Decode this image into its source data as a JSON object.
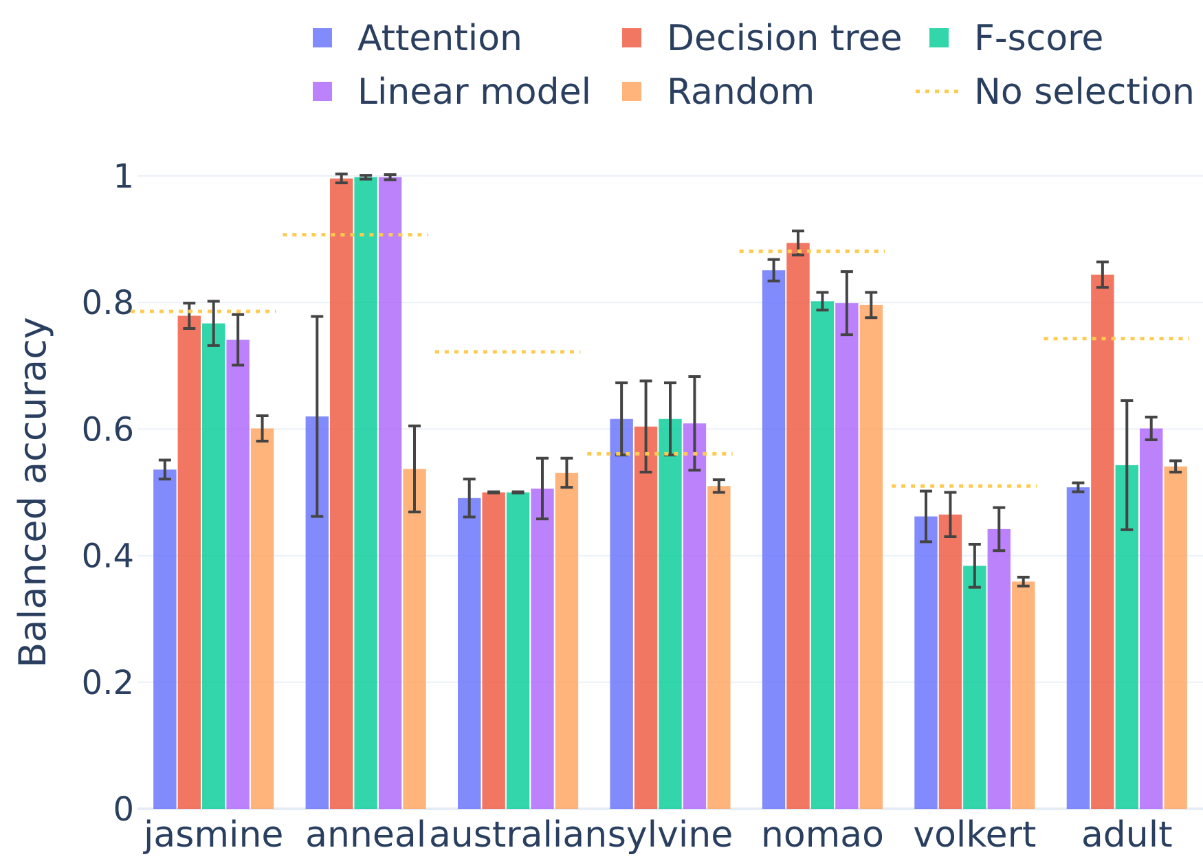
{
  "chart_data": {
    "type": "bar",
    "ylabel": "Balanced accuracy",
    "xlabel": "",
    "ylim": [
      0,
      1.0
    ],
    "yticks": [
      0,
      0.2,
      0.4,
      0.6,
      0.8,
      1
    ],
    "ytick_labels": [
      "0",
      "0.2",
      "0.4",
      "0.6",
      "0.8",
      "1"
    ],
    "grid": true,
    "legend_position": "top",
    "categories": [
      "jasmine",
      "anneal",
      "australian",
      "sylvine",
      "nomao",
      "volkert",
      "adult"
    ],
    "series": [
      {
        "name": "Attention",
        "color": "#636efa",
        "values": [
          0.536,
          0.62,
          0.491,
          0.616,
          0.851,
          0.462,
          0.508
        ],
        "error": [
          0.015,
          0.158,
          0.03,
          0.057,
          0.017,
          0.04,
          0.007
        ]
      },
      {
        "name": "Decision tree",
        "color": "#ef553b",
        "values": [
          0.779,
          0.996,
          0.5,
          0.604,
          0.894,
          0.465,
          0.844
        ],
        "error": [
          0.02,
          0.007,
          0.001,
          0.072,
          0.019,
          0.035,
          0.02
        ]
      },
      {
        "name": "F-score",
        "color": "#00cc96",
        "values": [
          0.767,
          0.998,
          0.5,
          0.616,
          0.802,
          0.384,
          0.543
        ],
        "error": [
          0.035,
          0.003,
          0.001,
          0.057,
          0.014,
          0.034,
          0.102
        ]
      },
      {
        "name": "Linear model",
        "color": "#ab63fa",
        "values": [
          0.741,
          0.998,
          0.506,
          0.609,
          0.799,
          0.442,
          0.601
        ],
        "error": [
          0.04,
          0.004,
          0.048,
          0.074,
          0.05,
          0.034,
          0.018
        ]
      },
      {
        "name": "Random",
        "color": "#ffa15a",
        "values": [
          0.601,
          0.537,
          0.531,
          0.51,
          0.796,
          0.359,
          0.541
        ],
        "error": [
          0.02,
          0.068,
          0.023,
          0.01,
          0.02,
          0.007,
          0.009
        ]
      }
    ],
    "reference": {
      "name": "No selection",
      "color": "#fecb52",
      "values": [
        0.786,
        0.907,
        0.722,
        0.561,
        0.881,
        0.51,
        0.743
      ]
    }
  }
}
